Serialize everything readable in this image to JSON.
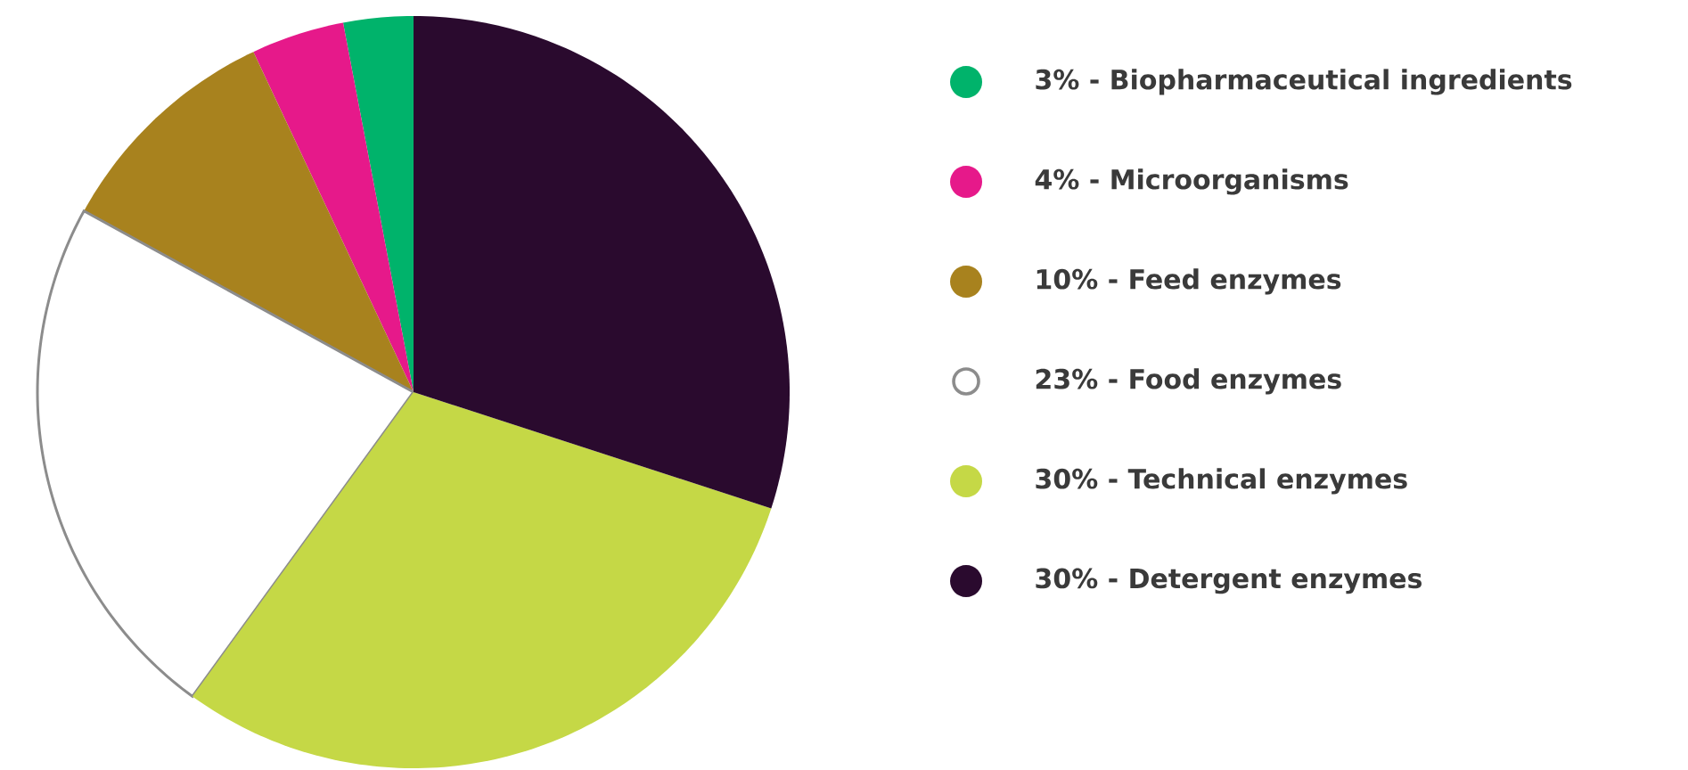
{
  "chart_data": {
    "type": "pie",
    "categories": [
      "3% - Biopharmaceutical ingredients",
      "4% - Microorganisms",
      "10% - Feed enzymes",
      "23% - Food enzymes",
      "30% - Technical enzymes",
      "30% - Detergent enzymes"
    ],
    "values": [
      3,
      4,
      10,
      23,
      30,
      30
    ],
    "colors": [
      "#00b36b",
      "#e6198a",
      "#a8821e",
      "#ffffff",
      "#c5d846",
      "#2a0a2e"
    ],
    "legend": "right"
  }
}
